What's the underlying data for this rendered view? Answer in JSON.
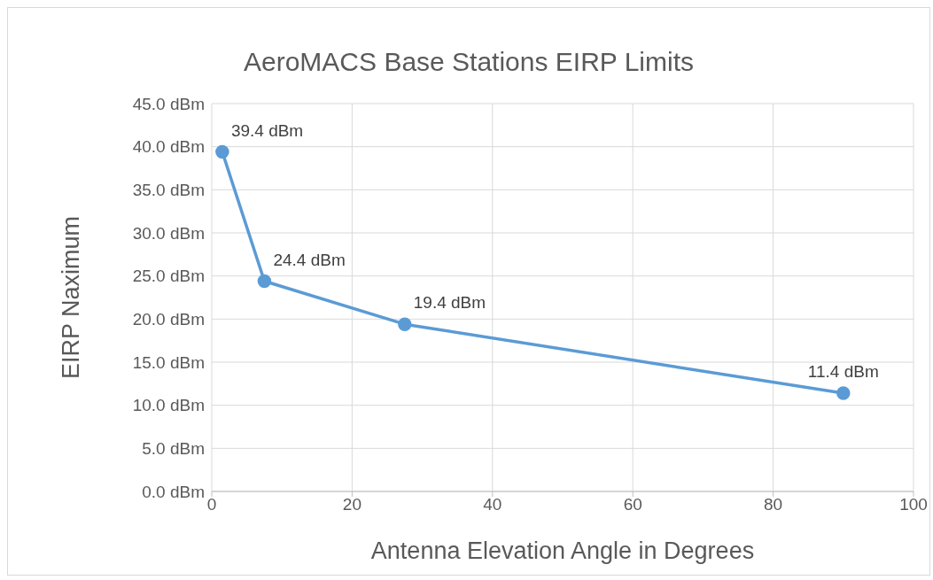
{
  "chart_data": {
    "type": "line",
    "title": "AeroMACS Base Stations EIRP Limits",
    "xlabel": "Antenna Elevation Angle in Degrees",
    "ylabel": "EIRP Naximum",
    "x": [
      1.5,
      7.5,
      27.5,
      90
    ],
    "series": [
      {
        "color": "#5b9bd5",
        "values": [
          39.4,
          24.4,
          19.4,
          11.4
        ],
        "value_labels": [
          "39.4 dBm",
          "24.4 dBm",
          "19.4 dBm",
          "11.4 dBm"
        ]
      }
    ],
    "xlim": [
      0,
      100
    ],
    "xticks": [
      0,
      20,
      40,
      60,
      80,
      100
    ],
    "ylim": [
      0,
      45
    ],
    "yticks": [
      {
        "value": 0,
        "label": "0.0 dBm"
      },
      {
        "value": 5,
        "label": "5.0 dBm"
      },
      {
        "value": 10,
        "label": "10.0 dBm"
      },
      {
        "value": 15,
        "label": "15.0 dBm"
      },
      {
        "value": 20,
        "label": "20.0 dBm"
      },
      {
        "value": 25,
        "label": "25.0 dBm"
      },
      {
        "value": 30,
        "label": "30.0 dBm"
      },
      {
        "value": 35,
        "label": "35.0 dBm"
      },
      {
        "value": 40,
        "label": "40.0 dBm"
      },
      {
        "value": 45,
        "label": "45.0 dBm"
      }
    ],
    "grid": true,
    "marker": "circle",
    "line_style": "solid"
  }
}
